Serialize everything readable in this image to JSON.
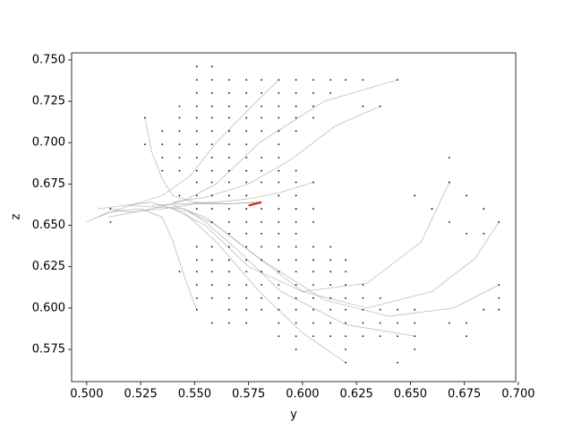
{
  "chart_data": {
    "type": "scatter",
    "xlabel": "y",
    "ylabel": "z",
    "xlim": [
      0.493,
      0.6988
    ],
    "ylim": [
      0.5555,
      0.7543
    ],
    "xticks": [
      {
        "value": 0.5,
        "label": "0.500"
      },
      {
        "value": 0.525,
        "label": "0.525"
      },
      {
        "value": 0.55,
        "label": "0.550"
      },
      {
        "value": 0.575,
        "label": "0.575"
      },
      {
        "value": 0.6,
        "label": "0.600"
      },
      {
        "value": 0.625,
        "label": "0.625"
      },
      {
        "value": 0.65,
        "label": "0.650"
      },
      {
        "value": 0.675,
        "label": "0.675"
      },
      {
        "value": 0.7,
        "label": "0.700"
      }
    ],
    "yticks": [
      {
        "value": 0.575,
        "label": "0.575"
      },
      {
        "value": 0.6,
        "label": "0.600"
      },
      {
        "value": 0.625,
        "label": "0.625"
      },
      {
        "value": 0.65,
        "label": "0.650"
      },
      {
        "value": 0.675,
        "label": "0.675"
      },
      {
        "value": 0.7,
        "label": "0.700"
      },
      {
        "value": 0.725,
        "label": "0.725"
      },
      {
        "value": 0.75,
        "label": "0.750"
      }
    ],
    "point_color": "#000000",
    "points": [
      [
        0.551,
        0.746
      ],
      [
        0.558,
        0.746
      ],
      [
        0.551,
        0.738
      ],
      [
        0.558,
        0.738
      ],
      [
        0.566,
        0.738
      ],
      [
        0.574,
        0.738
      ],
      [
        0.581,
        0.738
      ],
      [
        0.589,
        0.738
      ],
      [
        0.597,
        0.738
      ],
      [
        0.605,
        0.738
      ],
      [
        0.613,
        0.738
      ],
      [
        0.62,
        0.738
      ],
      [
        0.628,
        0.738
      ],
      [
        0.644,
        0.738
      ],
      [
        0.551,
        0.73
      ],
      [
        0.558,
        0.73
      ],
      [
        0.566,
        0.73
      ],
      [
        0.574,
        0.73
      ],
      [
        0.581,
        0.73
      ],
      [
        0.589,
        0.73
      ],
      [
        0.597,
        0.73
      ],
      [
        0.605,
        0.73
      ],
      [
        0.613,
        0.73
      ],
      [
        0.543,
        0.722
      ],
      [
        0.551,
        0.722
      ],
      [
        0.558,
        0.722
      ],
      [
        0.566,
        0.722
      ],
      [
        0.574,
        0.722
      ],
      [
        0.581,
        0.722
      ],
      [
        0.589,
        0.722
      ],
      [
        0.597,
        0.722
      ],
      [
        0.605,
        0.722
      ],
      [
        0.628,
        0.722
      ],
      [
        0.636,
        0.722
      ],
      [
        0.527,
        0.715
      ],
      [
        0.543,
        0.715
      ],
      [
        0.551,
        0.715
      ],
      [
        0.558,
        0.715
      ],
      [
        0.566,
        0.715
      ],
      [
        0.574,
        0.715
      ],
      [
        0.581,
        0.715
      ],
      [
        0.589,
        0.715
      ],
      [
        0.597,
        0.715
      ],
      [
        0.605,
        0.715
      ],
      [
        0.535,
        0.707
      ],
      [
        0.543,
        0.707
      ],
      [
        0.551,
        0.707
      ],
      [
        0.558,
        0.707
      ],
      [
        0.566,
        0.707
      ],
      [
        0.574,
        0.707
      ],
      [
        0.581,
        0.707
      ],
      [
        0.589,
        0.707
      ],
      [
        0.597,
        0.707
      ],
      [
        0.527,
        0.699
      ],
      [
        0.535,
        0.699
      ],
      [
        0.543,
        0.699
      ],
      [
        0.551,
        0.699
      ],
      [
        0.558,
        0.699
      ],
      [
        0.566,
        0.699
      ],
      [
        0.574,
        0.699
      ],
      [
        0.589,
        0.699
      ],
      [
        0.535,
        0.691
      ],
      [
        0.543,
        0.691
      ],
      [
        0.551,
        0.691
      ],
      [
        0.558,
        0.691
      ],
      [
        0.566,
        0.691
      ],
      [
        0.574,
        0.691
      ],
      [
        0.581,
        0.691
      ],
      [
        0.589,
        0.691
      ],
      [
        0.668,
        0.691
      ],
      [
        0.535,
        0.683
      ],
      [
        0.543,
        0.683
      ],
      [
        0.551,
        0.683
      ],
      [
        0.558,
        0.683
      ],
      [
        0.566,
        0.683
      ],
      [
        0.574,
        0.683
      ],
      [
        0.581,
        0.683
      ],
      [
        0.589,
        0.683
      ],
      [
        0.597,
        0.683
      ],
      [
        0.551,
        0.676
      ],
      [
        0.558,
        0.676
      ],
      [
        0.566,
        0.676
      ],
      [
        0.574,
        0.676
      ],
      [
        0.581,
        0.676
      ],
      [
        0.589,
        0.676
      ],
      [
        0.597,
        0.676
      ],
      [
        0.605,
        0.676
      ],
      [
        0.668,
        0.676
      ],
      [
        0.543,
        0.668
      ],
      [
        0.551,
        0.668
      ],
      [
        0.558,
        0.668
      ],
      [
        0.566,
        0.668
      ],
      [
        0.574,
        0.668
      ],
      [
        0.589,
        0.668
      ],
      [
        0.597,
        0.668
      ],
      [
        0.652,
        0.668
      ],
      [
        0.676,
        0.668
      ],
      [
        0.511,
        0.66
      ],
      [
        0.551,
        0.66
      ],
      [
        0.558,
        0.66
      ],
      [
        0.566,
        0.66
      ],
      [
        0.574,
        0.66
      ],
      [
        0.581,
        0.66
      ],
      [
        0.589,
        0.66
      ],
      [
        0.597,
        0.66
      ],
      [
        0.605,
        0.66
      ],
      [
        0.66,
        0.66
      ],
      [
        0.684,
        0.66
      ],
      [
        0.511,
        0.652
      ],
      [
        0.558,
        0.652
      ],
      [
        0.566,
        0.652
      ],
      [
        0.574,
        0.652
      ],
      [
        0.581,
        0.652
      ],
      [
        0.589,
        0.652
      ],
      [
        0.597,
        0.652
      ],
      [
        0.605,
        0.652
      ],
      [
        0.668,
        0.652
      ],
      [
        0.691,
        0.652
      ],
      [
        0.566,
        0.645
      ],
      [
        0.574,
        0.645
      ],
      [
        0.581,
        0.645
      ],
      [
        0.589,
        0.645
      ],
      [
        0.597,
        0.645
      ],
      [
        0.676,
        0.645
      ],
      [
        0.684,
        0.645
      ],
      [
        0.551,
        0.637
      ],
      [
        0.558,
        0.637
      ],
      [
        0.566,
        0.637
      ],
      [
        0.574,
        0.637
      ],
      [
        0.581,
        0.637
      ],
      [
        0.589,
        0.637
      ],
      [
        0.597,
        0.637
      ],
      [
        0.605,
        0.637
      ],
      [
        0.613,
        0.637
      ],
      [
        0.551,
        0.629
      ],
      [
        0.558,
        0.629
      ],
      [
        0.566,
        0.629
      ],
      [
        0.574,
        0.629
      ],
      [
        0.581,
        0.629
      ],
      [
        0.589,
        0.629
      ],
      [
        0.597,
        0.629
      ],
      [
        0.605,
        0.629
      ],
      [
        0.613,
        0.629
      ],
      [
        0.62,
        0.629
      ],
      [
        0.543,
        0.622
      ],
      [
        0.551,
        0.622
      ],
      [
        0.558,
        0.622
      ],
      [
        0.566,
        0.622
      ],
      [
        0.574,
        0.622
      ],
      [
        0.581,
        0.622
      ],
      [
        0.589,
        0.622
      ],
      [
        0.597,
        0.622
      ],
      [
        0.605,
        0.622
      ],
      [
        0.613,
        0.622
      ],
      [
        0.62,
        0.622
      ],
      [
        0.551,
        0.614
      ],
      [
        0.558,
        0.614
      ],
      [
        0.566,
        0.614
      ],
      [
        0.574,
        0.614
      ],
      [
        0.581,
        0.614
      ],
      [
        0.589,
        0.614
      ],
      [
        0.597,
        0.614
      ],
      [
        0.605,
        0.614
      ],
      [
        0.613,
        0.614
      ],
      [
        0.62,
        0.614
      ],
      [
        0.628,
        0.614
      ],
      [
        0.691,
        0.614
      ],
      [
        0.551,
        0.606
      ],
      [
        0.558,
        0.606
      ],
      [
        0.566,
        0.606
      ],
      [
        0.574,
        0.606
      ],
      [
        0.581,
        0.606
      ],
      [
        0.589,
        0.606
      ],
      [
        0.597,
        0.606
      ],
      [
        0.605,
        0.606
      ],
      [
        0.613,
        0.606
      ],
      [
        0.62,
        0.606
      ],
      [
        0.628,
        0.606
      ],
      [
        0.636,
        0.606
      ],
      [
        0.691,
        0.606
      ],
      [
        0.551,
        0.599
      ],
      [
        0.566,
        0.599
      ],
      [
        0.574,
        0.599
      ],
      [
        0.581,
        0.599
      ],
      [
        0.589,
        0.599
      ],
      [
        0.597,
        0.599
      ],
      [
        0.605,
        0.599
      ],
      [
        0.613,
        0.599
      ],
      [
        0.62,
        0.599
      ],
      [
        0.628,
        0.599
      ],
      [
        0.636,
        0.599
      ],
      [
        0.644,
        0.599
      ],
      [
        0.652,
        0.599
      ],
      [
        0.684,
        0.599
      ],
      [
        0.691,
        0.599
      ],
      [
        0.558,
        0.591
      ],
      [
        0.566,
        0.591
      ],
      [
        0.574,
        0.591
      ],
      [
        0.589,
        0.591
      ],
      [
        0.597,
        0.591
      ],
      [
        0.605,
        0.591
      ],
      [
        0.613,
        0.591
      ],
      [
        0.62,
        0.591
      ],
      [
        0.628,
        0.591
      ],
      [
        0.636,
        0.591
      ],
      [
        0.644,
        0.591
      ],
      [
        0.652,
        0.591
      ],
      [
        0.668,
        0.591
      ],
      [
        0.676,
        0.591
      ],
      [
        0.589,
        0.583
      ],
      [
        0.597,
        0.583
      ],
      [
        0.605,
        0.583
      ],
      [
        0.613,
        0.583
      ],
      [
        0.62,
        0.583
      ],
      [
        0.628,
        0.583
      ],
      [
        0.636,
        0.583
      ],
      [
        0.644,
        0.583
      ],
      [
        0.652,
        0.583
      ],
      [
        0.676,
        0.583
      ],
      [
        0.597,
        0.575
      ],
      [
        0.62,
        0.575
      ],
      [
        0.652,
        0.575
      ],
      [
        0.62,
        0.567
      ],
      [
        0.644,
        0.567
      ]
    ],
    "trajectory_color": "#888888",
    "trajectories": [
      {
        "x": [
          0.644,
          0.61,
          0.58,
          0.56,
          0.545,
          0.53,
          0.51
        ],
        "y": [
          0.738,
          0.725,
          0.7,
          0.675,
          0.665,
          0.66,
          0.655
        ]
      },
      {
        "x": [
          0.691,
          0.68,
          0.66,
          0.63,
          0.6,
          0.575,
          0.555,
          0.54
        ],
        "y": [
          0.652,
          0.63,
          0.61,
          0.6,
          0.61,
          0.635,
          0.655,
          0.662
        ]
      },
      {
        "x": [
          0.668,
          0.655,
          0.63,
          0.6,
          0.575,
          0.555,
          0.54
        ],
        "y": [
          0.676,
          0.64,
          0.615,
          0.61,
          0.625,
          0.65,
          0.66
        ]
      },
      {
        "x": [
          0.652,
          0.62,
          0.59,
          0.57,
          0.555,
          0.545,
          0.52
        ],
        "y": [
          0.583,
          0.59,
          0.61,
          0.635,
          0.652,
          0.66,
          0.662
        ]
      },
      {
        "x": [
          0.62,
          0.6,
          0.58,
          0.56,
          0.545,
          0.53,
          0.505
        ],
        "y": [
          0.567,
          0.585,
          0.61,
          0.64,
          0.658,
          0.664,
          0.66
        ]
      },
      {
        "x": [
          0.527,
          0.53,
          0.535,
          0.54,
          0.55,
          0.565,
          0.58
        ],
        "y": [
          0.715,
          0.695,
          0.678,
          0.668,
          0.664,
          0.663,
          0.664
        ]
      },
      {
        "x": [
          0.589,
          0.575,
          0.56,
          0.548,
          0.535,
          0.52,
          0.505
        ],
        "y": [
          0.738,
          0.72,
          0.7,
          0.68,
          0.668,
          0.662,
          0.655
        ]
      },
      {
        "x": [
          0.511,
          0.52,
          0.535,
          0.55,
          0.565,
          0.58
        ],
        "y": [
          0.66,
          0.658,
          0.66,
          0.663,
          0.663,
          0.664
        ]
      },
      {
        "x": [
          0.551,
          0.545,
          0.54,
          0.535,
          0.525,
          0.51,
          0.5
        ],
        "y": [
          0.599,
          0.62,
          0.64,
          0.655,
          0.66,
          0.658,
          0.652
        ]
      },
      {
        "x": [
          0.691,
          0.67,
          0.64,
          0.61,
          0.58,
          0.56,
          0.545
        ],
        "y": [
          0.614,
          0.6,
          0.595,
          0.605,
          0.63,
          0.65,
          0.66
        ]
      },
      {
        "x": [
          0.605,
          0.59,
          0.575,
          0.56,
          0.545,
          0.53
        ],
        "y": [
          0.676,
          0.67,
          0.666,
          0.664,
          0.663,
          0.662
        ]
      },
      {
        "x": [
          0.636,
          0.615,
          0.595,
          0.575,
          0.555,
          0.54
        ],
        "y": [
          0.722,
          0.71,
          0.69,
          0.675,
          0.667,
          0.664
        ]
      }
    ],
    "highlight_color": "#d62728",
    "highlight": {
      "x": [
        0.575,
        0.578,
        0.581
      ],
      "y": [
        0.662,
        0.663,
        0.664
      ]
    }
  }
}
